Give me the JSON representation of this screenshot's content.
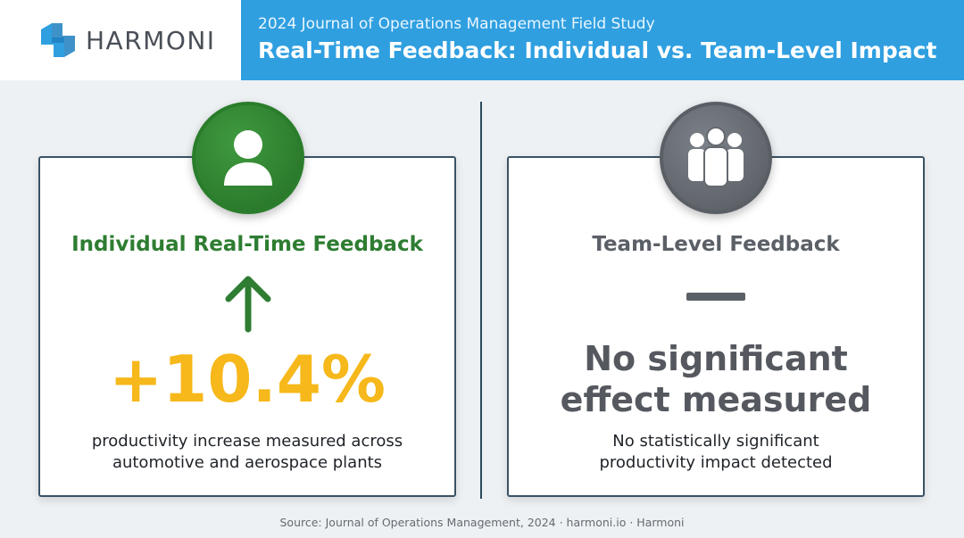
{
  "brand": {
    "name": "HARMONI",
    "logo_icon": "harmoni-logo-icon",
    "color": "#2f9fe0"
  },
  "header": {
    "subtitle": "2024 Journal of Operations Management Field Study",
    "title": "Real-Time Feedback: Individual vs. Team-Level Impact"
  },
  "individual": {
    "icon": "person-icon",
    "title": "Individual Real-Time Feedback",
    "trend_icon": "arrow-up-icon",
    "value": "+10.4%",
    "description_line1": "productivity increase measured across",
    "description_line2": "automotive and aerospace plants",
    "accent_color": "#2e7d32",
    "value_color": "#f6b81a"
  },
  "team": {
    "icon": "group-icon",
    "title": "Team-Level Feedback",
    "trend_icon": "dash-icon",
    "headline_line1": "No significant",
    "headline_line2": "effect measured",
    "description_line1": "No statistically significant",
    "description_line2": "productivity impact detected",
    "accent_color": "#5b5f66"
  },
  "footer": {
    "source": "Source: Journal of Operations Management, 2024 · harmoni.io · Harmoni"
  }
}
